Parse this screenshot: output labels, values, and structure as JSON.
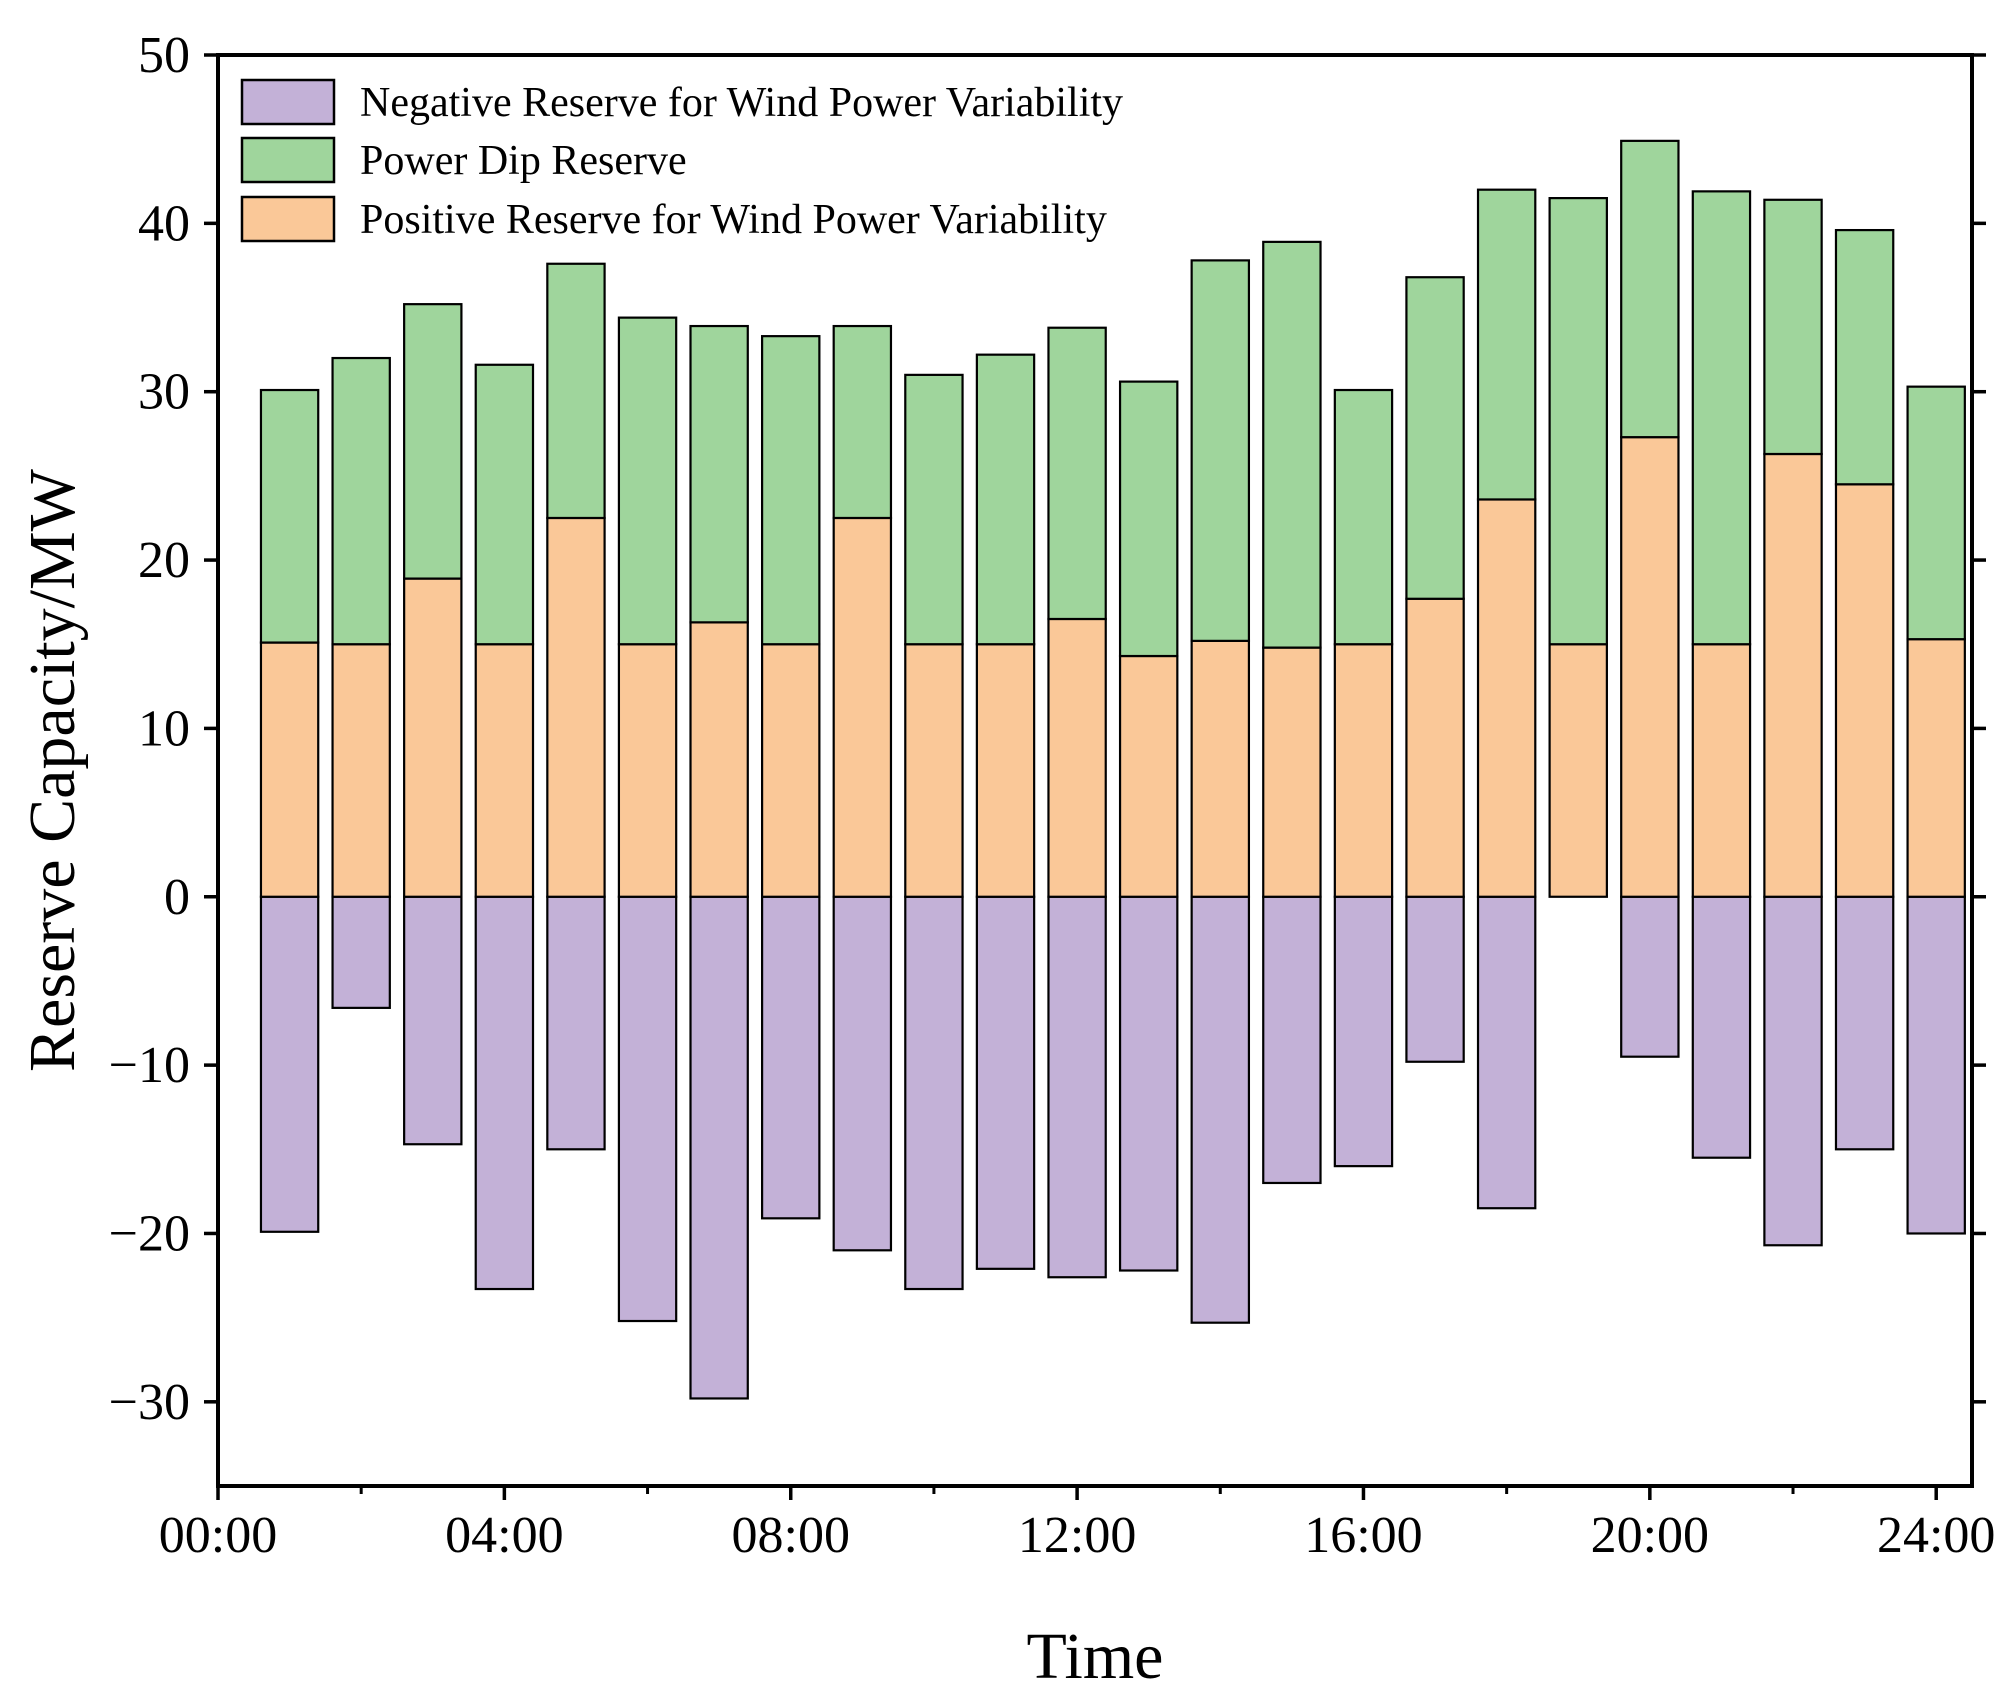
{
  "chart_data": {
    "type": "bar",
    "stacked": true,
    "xlabel": "Time",
    "ylabel": "Reserve Capacity/MW",
    "ylim": [
      -35,
      50
    ],
    "yticks": [
      -30,
      -20,
      -10,
      0,
      10,
      20,
      30,
      40,
      50
    ],
    "ytick_labels": [
      "−30",
      "−20",
      "−10",
      "0",
      "10",
      "20",
      "30",
      "40",
      "50"
    ],
    "xlim": [
      0,
      24.5
    ],
    "xticks": [
      0,
      4,
      8,
      12,
      16,
      20,
      24
    ],
    "xtick_labels": [
      "00:00",
      "04:00",
      "08:00",
      "12:00",
      "16:00",
      "20:00",
      "24:00"
    ],
    "bar_width": 0.8,
    "x": [
      1,
      2,
      3,
      4,
      5,
      6,
      7,
      8,
      9,
      10,
      11,
      12,
      13,
      14,
      15,
      16,
      17,
      18,
      19,
      20,
      21,
      22,
      23,
      24
    ],
    "legend_position": "top-left",
    "series": [
      {
        "name": "Negative Reserve for Wind Power Variability",
        "color": "#c3b1d7",
        "values": [
          -19.9,
          -6.6,
          -14.7,
          -23.3,
          -15.0,
          -25.2,
          -29.8,
          -19.1,
          -21.0,
          -23.3,
          -22.1,
          -22.6,
          -22.2,
          -25.3,
          -17.0,
          -16.0,
          -9.8,
          -18.5,
          0,
          -9.5,
          -15.5,
          -20.7,
          -15.0,
          -20.0
        ]
      },
      {
        "name": "Power Dip Reserve",
        "color": "#9fd59c",
        "values": [
          15.0,
          17.0,
          16.3,
          16.6,
          15.1,
          19.4,
          17.6,
          18.3,
          11.4,
          16.0,
          17.2,
          17.3,
          16.3,
          22.6,
          24.1,
          15.1,
          19.1,
          18.4,
          26.5,
          17.6,
          26.9,
          15.1,
          15.1,
          15.0
        ]
      },
      {
        "name": "Positive Reserve for Wind Power Variability",
        "color": "#fac898",
        "values": [
          15.1,
          15.0,
          18.9,
          15.0,
          22.5,
          15.0,
          16.3,
          15.0,
          22.5,
          15.0,
          15.0,
          16.5,
          14.3,
          15.2,
          14.8,
          15.0,
          17.7,
          23.6,
          15.0,
          27.3,
          15.0,
          26.3,
          24.5,
          15.3
        ]
      }
    ]
  }
}
